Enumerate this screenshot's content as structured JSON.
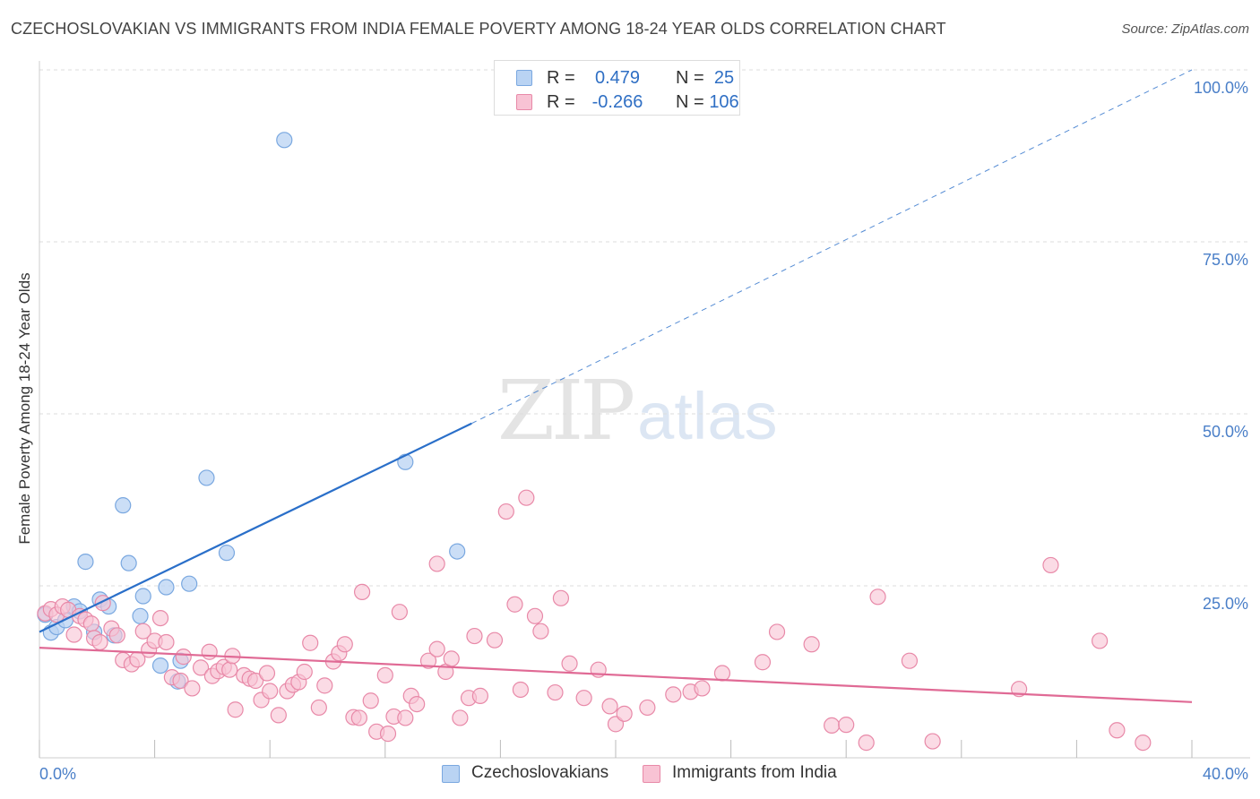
{
  "title": "CZECHOSLOVAKIAN VS IMMIGRANTS FROM INDIA FEMALE POVERTY AMONG 18-24 YEAR OLDS CORRELATION CHART",
  "source": "Source: ZipAtlas.com",
  "watermark": {
    "zip": "ZIP",
    "atlas": "atlas"
  },
  "legend_top": [
    {
      "r_label": "R =",
      "r_value": "0.479",
      "n_label": "N =",
      "n_value": "25"
    },
    {
      "r_label": "R =",
      "r_value": "-0.266",
      "n_label": "N =",
      "n_value": "106"
    }
  ],
  "colors": {
    "blue_fill": "#b9d3f3",
    "blue_stroke": "#7aa8e0",
    "blue_line": "#2a6fc9",
    "pink_fill": "#f8c3d4",
    "pink_stroke": "#e889a8",
    "pink_line": "#e06a95",
    "tick_label": "#4a7fc8",
    "grid": "#dddddd"
  },
  "chart_data": {
    "type": "scatter",
    "title": "CZECHOSLOVAKIAN VS IMMIGRANTS FROM INDIA FEMALE POVERTY AMONG 18-24 YEAR OLDS CORRELATION CHART",
    "xlabel": "",
    "ylabel": "Female Poverty Among 18-24 Year Olds",
    "xlim": [
      0,
      40
    ],
    "ylim": [
      0,
      100
    ],
    "x_tick_labels": [
      "0.0%",
      "40.0%"
    ],
    "y_ticks": [
      25,
      50,
      75,
      100
    ],
    "y_tick_labels": [
      "25.0%",
      "50.0%",
      "75.0%",
      "100.0%"
    ],
    "grid": true,
    "legend_position": "bottom",
    "series": [
      {
        "name": "Czechoslovakians",
        "color": "#b9d3f3",
        "r": 0.479,
        "n": 25,
        "trend": {
          "x0": 0,
          "y0": 18.3,
          "x1": 15,
          "y1": 48.6,
          "extends_dashed_to": [
            40,
            100
          ]
        },
        "points": [
          [
            0.2,
            20.8
          ],
          [
            0.4,
            18.2
          ],
          [
            0.6,
            19.0
          ],
          [
            0.9,
            20.0
          ],
          [
            1.2,
            22.0
          ],
          [
            1.4,
            21.3
          ],
          [
            1.6,
            28.5
          ],
          [
            1.9,
            18.3
          ],
          [
            2.1,
            23.0
          ],
          [
            2.4,
            22.0
          ],
          [
            2.6,
            17.8
          ],
          [
            2.9,
            36.7
          ],
          [
            3.1,
            28.3
          ],
          [
            3.5,
            20.6
          ],
          [
            3.6,
            23.5
          ],
          [
            4.2,
            13.4
          ],
          [
            4.4,
            24.8
          ],
          [
            4.8,
            11.1
          ],
          [
            4.9,
            14.1
          ],
          [
            5.2,
            25.3
          ],
          [
            5.8,
            40.7
          ],
          [
            6.5,
            29.8
          ],
          [
            8.5,
            89.8
          ],
          [
            12.7,
            43.0
          ],
          [
            14.5,
            30.0
          ]
        ]
      },
      {
        "name": "Immigrants from India",
        "color": "#f8c3d4",
        "r": -0.266,
        "n": 106,
        "trend": {
          "x0": 0,
          "y0": 16.0,
          "x1": 40,
          "y1": 8.1
        },
        "points": [
          [
            0.2,
            21.0
          ],
          [
            0.4,
            21.6
          ],
          [
            0.6,
            20.8
          ],
          [
            0.8,
            22.0
          ],
          [
            1.0,
            21.5
          ],
          [
            1.2,
            17.9
          ],
          [
            1.4,
            20.6
          ],
          [
            1.6,
            20.1
          ],
          [
            1.8,
            19.5
          ],
          [
            1.9,
            17.4
          ],
          [
            2.1,
            16.8
          ],
          [
            2.2,
            22.5
          ],
          [
            2.5,
            18.8
          ],
          [
            2.7,
            17.8
          ],
          [
            2.9,
            14.2
          ],
          [
            3.2,
            13.6
          ],
          [
            3.4,
            14.3
          ],
          [
            3.6,
            18.4
          ],
          [
            3.8,
            15.7
          ],
          [
            4.0,
            17.0
          ],
          [
            4.2,
            20.3
          ],
          [
            4.4,
            16.8
          ],
          [
            4.6,
            11.7
          ],
          [
            4.9,
            11.2
          ],
          [
            5.0,
            14.7
          ],
          [
            5.3,
            10.1
          ],
          [
            5.6,
            13.1
          ],
          [
            5.9,
            15.4
          ],
          [
            6.0,
            11.9
          ],
          [
            6.2,
            12.6
          ],
          [
            6.4,
            13.2
          ],
          [
            6.6,
            12.8
          ],
          [
            6.7,
            14.8
          ],
          [
            6.8,
            7.0
          ],
          [
            7.1,
            12.0
          ],
          [
            7.3,
            11.5
          ],
          [
            7.5,
            11.2
          ],
          [
            7.7,
            8.4
          ],
          [
            7.9,
            12.3
          ],
          [
            8.0,
            9.7
          ],
          [
            8.3,
            6.2
          ],
          [
            8.6,
            9.7
          ],
          [
            8.8,
            10.6
          ],
          [
            9.0,
            11.0
          ],
          [
            9.2,
            12.5
          ],
          [
            9.4,
            16.7
          ],
          [
            9.7,
            7.3
          ],
          [
            9.9,
            10.5
          ],
          [
            10.2,
            14.0
          ],
          [
            10.4,
            15.2
          ],
          [
            10.6,
            16.5
          ],
          [
            10.9,
            5.9
          ],
          [
            11.1,
            5.8
          ],
          [
            11.2,
            24.1
          ],
          [
            11.5,
            8.3
          ],
          [
            11.7,
            3.8
          ],
          [
            12.0,
            12.0
          ],
          [
            12.1,
            3.5
          ],
          [
            12.3,
            6.0
          ],
          [
            12.5,
            21.2
          ],
          [
            12.7,
            5.8
          ],
          [
            12.9,
            9.0
          ],
          [
            13.1,
            7.8
          ],
          [
            13.5,
            14.1
          ],
          [
            13.8,
            15.8
          ],
          [
            13.8,
            28.2
          ],
          [
            14.1,
            12.5
          ],
          [
            14.3,
            14.4
          ],
          [
            14.6,
            5.8
          ],
          [
            14.9,
            8.7
          ],
          [
            15.1,
            17.7
          ],
          [
            15.3,
            9.0
          ],
          [
            15.8,
            17.1
          ],
          [
            16.2,
            35.8
          ],
          [
            16.5,
            22.3
          ],
          [
            16.7,
            9.9
          ],
          [
            16.9,
            37.8
          ],
          [
            17.2,
            20.6
          ],
          [
            17.4,
            18.4
          ],
          [
            17.9,
            9.5
          ],
          [
            18.1,
            23.2
          ],
          [
            18.4,
            13.7
          ],
          [
            18.9,
            8.7
          ],
          [
            19.4,
            12.8
          ],
          [
            19.8,
            7.5
          ],
          [
            20.0,
            4.9
          ],
          [
            20.3,
            6.4
          ],
          [
            21.1,
            7.3
          ],
          [
            22.0,
            9.2
          ],
          [
            22.6,
            9.6
          ],
          [
            23.0,
            10.1
          ],
          [
            23.7,
            12.3
          ],
          [
            25.1,
            13.9
          ],
          [
            25.6,
            18.3
          ],
          [
            26.8,
            16.5
          ],
          [
            27.5,
            4.7
          ],
          [
            28.0,
            4.8
          ],
          [
            28.7,
            2.2
          ],
          [
            29.1,
            23.4
          ],
          [
            30.2,
            14.1
          ],
          [
            31.0,
            2.4
          ],
          [
            34.0,
            10.0
          ],
          [
            35.1,
            28.0
          ],
          [
            36.8,
            17.0
          ],
          [
            37.4,
            4.0
          ],
          [
            38.3,
            2.2
          ]
        ]
      }
    ]
  },
  "legend_bottom": [
    {
      "label": "Czechoslovakians"
    },
    {
      "label": "Immigrants from India"
    }
  ]
}
